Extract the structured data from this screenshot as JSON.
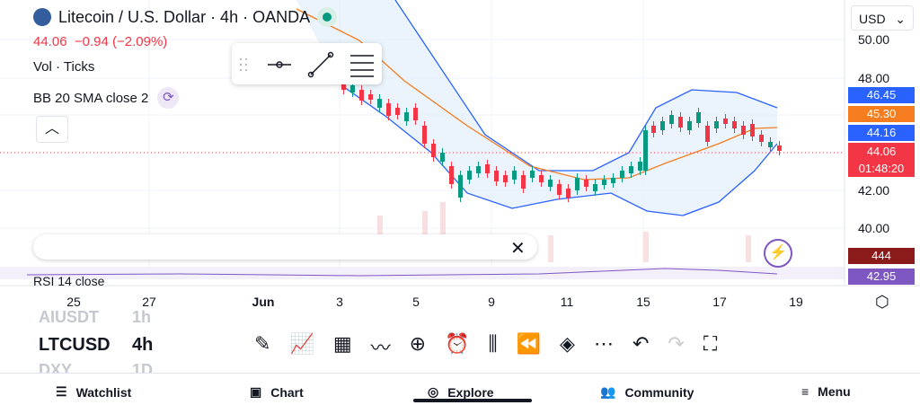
{
  "header": {
    "title": "Litecoin / U.S. Dollar · 4h · OANDA",
    "price": "44.06",
    "change": "−0.94 (−2.09%)",
    "volume": "Vol · Ticks",
    "indicator": "BB 20 SMA close 2",
    "currency": "USD"
  },
  "price_axis": [
    "50.00",
    "48.00",
    "42.00",
    "40.00"
  ],
  "badges": {
    "upper": "46.45",
    "middle": "45.30",
    "lower": "44.16",
    "last": "44.06",
    "countdown": "01:48:20",
    "volume": "444",
    "rsi": "42.95"
  },
  "rsi_label": "RSI 14 close",
  "dates": [
    "25",
    "27",
    "Jun",
    "3",
    "5",
    "9",
    "11",
    "15",
    "17",
    "19"
  ],
  "watchlist": [
    {
      "symbol": "AIUSDT",
      "interval": "1h"
    },
    {
      "symbol": "LTCUSD",
      "interval": "4h"
    },
    {
      "symbol": "DXY",
      "interval": "1D"
    }
  ],
  "nav": [
    "Watchlist",
    "Chart",
    "Explore",
    "Community",
    "Menu"
  ]
}
